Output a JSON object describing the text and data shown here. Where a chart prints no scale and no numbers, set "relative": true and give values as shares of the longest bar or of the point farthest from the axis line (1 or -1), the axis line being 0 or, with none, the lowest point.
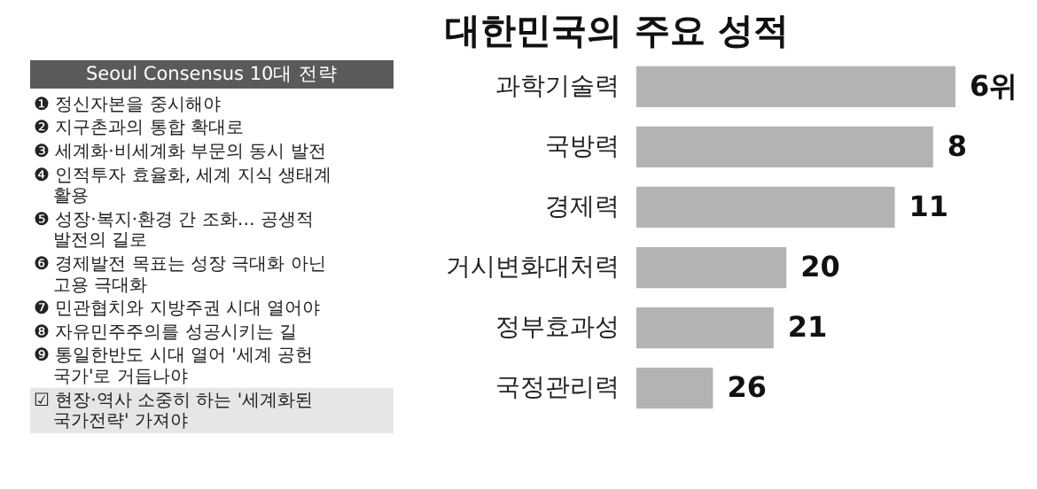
{
  "chart_data": [
    {
      "type": "other",
      "title": "Seoul Consensus 10대 전략",
      "annotations": [
        "❶ 정신자본을 중시해야",
        "❷ 지구촌과의 통합 확대로",
        "❸ 세계화·비세계화 부문의 동시 발전",
        "❹ 인적투자 효율화, 세계 지식 생태계 활용",
        "❺ 성장·복지·환경 간 조화… 공생적 발전의 길로",
        "❻ 경제발전 목표는 성장 극대화 아닌 고용 극대화",
        "❼ 민관협치와 지방주권 시대 열어야",
        "❽ 자유민주주의를 성공시키는 길",
        "❾ 통일한반도 시대 열어 '세계 공헌 국가'로 거듭나야",
        "☑ 현장·역사 소중히 하는 '세계화된 국가전략' 가져야"
      ]
    },
    {
      "type": "bar",
      "orientation": "horizontal",
      "relative": true,
      "title": "대한민국의 주요 성적",
      "categories": [
        "과학기술력",
        "국방력",
        "경제력",
        "거시변화대처력",
        "정부효과성",
        "국정관리력"
      ],
      "values": [
        1,
        0.93,
        0.81,
        0.47,
        0.43,
        0.24
      ],
      "annotations": [
        {
          "text": "6위",
          "x": 1,
          "y": "과학기술력"
        },
        {
          "text": "8",
          "x": 0.93,
          "y": "국방력"
        },
        {
          "text": "11",
          "x": 0.81,
          "y": "경제력"
        },
        {
          "text": "20",
          "x": 0.47,
          "y": "거시변화대처력"
        },
        {
          "text": "21",
          "x": 0.43,
          "y": "정부효과성"
        },
        {
          "text": "26",
          "x": 0.24,
          "y": "국정관리력"
        }
      ],
      "color": "#b3b3b3"
    }
  ]
}
